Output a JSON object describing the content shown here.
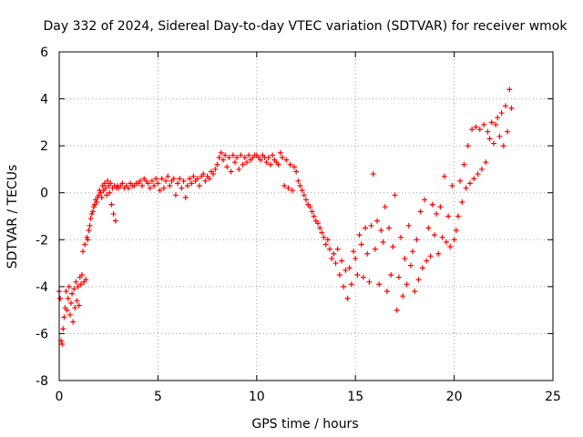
{
  "chart_data": {
    "type": "scatter",
    "title": "Day 332 of 2024, Sidereal Day-to-day VTEC variation (SDTVAR) for receiver wmok",
    "xlabel": "GPS time / hours",
    "ylabel": "SDTVAR / TECUs",
    "xlim": [
      0,
      25
    ],
    "ylim": [
      -8,
      6
    ],
    "xticks": [
      0,
      5,
      10,
      15,
      20,
      25
    ],
    "yticks": [
      -8,
      -6,
      -4,
      -2,
      0,
      2,
      4,
      6
    ],
    "grid": true,
    "marker": "+",
    "color": "#ff0000",
    "series": [
      {
        "name": "wmok",
        "points": [
          [
            0.0,
            -4.2
          ],
          [
            0.05,
            -4.5
          ],
          [
            0.1,
            -6.3
          ],
          [
            0.15,
            -6.45
          ],
          [
            0.2,
            -5.8
          ],
          [
            0.25,
            -5.3
          ],
          [
            0.3,
            -4.9
          ],
          [
            0.35,
            -4.2
          ],
          [
            0.4,
            -5.0
          ],
          [
            0.45,
            -4.5
          ],
          [
            0.5,
            -4.0
          ],
          [
            0.55,
            -5.2
          ],
          [
            0.6,
            -4.7
          ],
          [
            0.65,
            -4.3
          ],
          [
            0.7,
            -5.5
          ],
          [
            0.75,
            -4.1
          ],
          [
            0.8,
            -4.9
          ],
          [
            0.85,
            -3.8
          ],
          [
            0.9,
            -4.6
          ],
          [
            0.95,
            -4.0
          ],
          [
            1.0,
            -4.8
          ],
          [
            1.05,
            -3.6
          ],
          [
            1.1,
            -3.9
          ],
          [
            1.15,
            -3.5
          ],
          [
            1.2,
            -2.5
          ],
          [
            1.25,
            -3.8
          ],
          [
            1.3,
            -2.2
          ],
          [
            1.35,
            -3.7
          ],
          [
            1.4,
            -1.9
          ],
          [
            1.45,
            -2.0
          ],
          [
            1.5,
            -1.6
          ],
          [
            1.55,
            -1.4
          ],
          [
            1.6,
            -1.1
          ],
          [
            1.65,
            -0.9
          ],
          [
            1.7,
            -0.8
          ],
          [
            1.75,
            -0.6
          ],
          [
            1.8,
            -0.5
          ],
          [
            1.85,
            -0.3
          ],
          [
            1.9,
            -0.4
          ],
          [
            1.95,
            -0.2
          ],
          [
            2.0,
            -0.1
          ],
          [
            2.05,
            0.1
          ],
          [
            2.1,
            0.0
          ],
          [
            2.15,
            -0.2
          ],
          [
            2.2,
            0.3
          ],
          [
            2.25,
            0.1
          ],
          [
            2.3,
            0.4
          ],
          [
            2.35,
            0.2
          ],
          [
            2.4,
            -0.1
          ],
          [
            2.45,
            0.5
          ],
          [
            2.5,
            0.3
          ],
          [
            2.55,
            0.0
          ],
          [
            2.6,
            0.4
          ],
          [
            2.65,
            -0.5
          ],
          [
            2.7,
            0.2
          ],
          [
            2.75,
            -0.9
          ],
          [
            2.8,
            0.3
          ],
          [
            2.85,
            -1.2
          ],
          [
            2.9,
            0.2
          ],
          [
            2.95,
            0.3
          ],
          [
            3.0,
            0.2
          ],
          [
            3.1,
            0.3
          ],
          [
            3.2,
            0.4
          ],
          [
            3.3,
            0.2
          ],
          [
            3.4,
            0.3
          ],
          [
            3.5,
            0.2
          ],
          [
            3.6,
            0.4
          ],
          [
            3.7,
            0.3
          ],
          [
            3.8,
            0.3
          ],
          [
            3.9,
            0.4
          ],
          [
            4.0,
            0.4
          ],
          [
            4.1,
            0.5
          ],
          [
            4.2,
            0.3
          ],
          [
            4.3,
            0.6
          ],
          [
            4.4,
            0.5
          ],
          [
            4.5,
            0.4
          ],
          [
            4.6,
            0.2
          ],
          [
            4.7,
            0.5
          ],
          [
            4.8,
            0.3
          ],
          [
            4.9,
            0.6
          ],
          [
            5.0,
            0.4
          ],
          [
            5.1,
            0.1
          ],
          [
            5.2,
            0.6
          ],
          [
            5.3,
            0.2
          ],
          [
            5.4,
            0.5
          ],
          [
            5.5,
            0.7
          ],
          [
            5.6,
            0.3
          ],
          [
            5.7,
            0.5
          ],
          [
            5.8,
            0.6
          ],
          [
            5.9,
            -0.1
          ],
          [
            6.0,
            0.4
          ],
          [
            6.1,
            0.6
          ],
          [
            6.2,
            0.2
          ],
          [
            6.3,
            0.5
          ],
          [
            6.4,
            -0.2
          ],
          [
            6.5,
            0.3
          ],
          [
            6.6,
            0.6
          ],
          [
            6.7,
            0.4
          ],
          [
            6.8,
            0.7
          ],
          [
            6.9,
            0.5
          ],
          [
            7.0,
            0.6
          ],
          [
            7.1,
            0.3
          ],
          [
            7.2,
            0.7
          ],
          [
            7.3,
            0.8
          ],
          [
            7.4,
            0.5
          ],
          [
            7.5,
            0.7
          ],
          [
            7.6,
            0.6
          ],
          [
            7.7,
            0.9
          ],
          [
            7.8,
            0.8
          ],
          [
            7.9,
            1.0
          ],
          [
            8.0,
            1.2
          ],
          [
            8.1,
            1.5
          ],
          [
            8.2,
            1.7
          ],
          [
            8.3,
            1.4
          ],
          [
            8.4,
            1.6
          ],
          [
            8.5,
            1.1
          ],
          [
            8.6,
            1.5
          ],
          [
            8.7,
            0.9
          ],
          [
            8.8,
            1.6
          ],
          [
            8.9,
            1.3
          ],
          [
            9.0,
            1.5
          ],
          [
            9.1,
            1.0
          ],
          [
            9.2,
            1.6
          ],
          [
            9.3,
            1.2
          ],
          [
            9.4,
            1.5
          ],
          [
            9.5,
            1.3
          ],
          [
            9.6,
            1.6
          ],
          [
            9.7,
            1.4
          ],
          [
            9.8,
            1.5
          ],
          [
            9.9,
            1.6
          ],
          [
            10.0,
            1.6
          ],
          [
            10.1,
            1.5
          ],
          [
            10.2,
            1.4
          ],
          [
            10.3,
            1.6
          ],
          [
            10.4,
            1.5
          ],
          [
            10.5,
            1.3
          ],
          [
            10.6,
            1.5
          ],
          [
            10.7,
            1.2
          ],
          [
            10.8,
            1.6
          ],
          [
            10.9,
            1.4
          ],
          [
            11.0,
            1.3
          ],
          [
            11.1,
            1.2
          ],
          [
            11.2,
            1.7
          ],
          [
            11.3,
            1.5
          ],
          [
            11.4,
            0.3
          ],
          [
            11.5,
            1.4
          ],
          [
            11.6,
            0.2
          ],
          [
            11.7,
            1.2
          ],
          [
            11.8,
            0.1
          ],
          [
            11.9,
            1.1
          ],
          [
            12.0,
            0.9
          ],
          [
            12.1,
            0.5
          ],
          [
            12.2,
            0.3
          ],
          [
            12.3,
            0.1
          ],
          [
            12.4,
            -0.1
          ],
          [
            12.5,
            -0.3
          ],
          [
            12.6,
            -0.5
          ],
          [
            12.7,
            -0.6
          ],
          [
            12.8,
            -0.8
          ],
          [
            12.9,
            -1.0
          ],
          [
            13.0,
            -1.2
          ],
          [
            13.1,
            -1.3
          ],
          [
            13.2,
            -1.5
          ],
          [
            13.3,
            -1.7
          ],
          [
            13.4,
            -1.9
          ],
          [
            13.5,
            -2.2
          ],
          [
            13.6,
            -2.0
          ],
          [
            13.7,
            -2.4
          ],
          [
            13.8,
            -2.8
          ],
          [
            13.9,
            -2.6
          ],
          [
            14.0,
            -3.0
          ],
          [
            14.1,
            -2.4
          ],
          [
            14.2,
            -3.5
          ],
          [
            14.3,
            -2.9
          ],
          [
            14.4,
            -4.0
          ],
          [
            14.5,
            -3.3
          ],
          [
            14.6,
            -4.5
          ],
          [
            14.7,
            -3.2
          ],
          [
            14.8,
            -3.9
          ],
          [
            14.9,
            -2.5
          ],
          [
            15.0,
            -2.8
          ],
          [
            15.1,
            -3.5
          ],
          [
            15.2,
            -1.8
          ],
          [
            15.3,
            -2.2
          ],
          [
            15.4,
            -3.6
          ],
          [
            15.5,
            -1.5
          ],
          [
            15.6,
            -2.6
          ],
          [
            15.7,
            -3.8
          ],
          [
            15.8,
            -1.4
          ],
          [
            15.9,
            0.8
          ],
          [
            16.0,
            -2.4
          ],
          [
            16.1,
            -1.2
          ],
          [
            16.2,
            -3.9
          ],
          [
            16.3,
            -1.6
          ],
          [
            16.4,
            -2.1
          ],
          [
            16.5,
            -0.6
          ],
          [
            16.6,
            -4.2
          ],
          [
            16.7,
            -1.5
          ],
          [
            16.8,
            -3.5
          ],
          [
            16.9,
            -2.3
          ],
          [
            17.0,
            -0.1
          ],
          [
            17.1,
            -5.0
          ],
          [
            17.2,
            -3.6
          ],
          [
            17.3,
            -1.9
          ],
          [
            17.4,
            -4.4
          ],
          [
            17.5,
            -2.8
          ],
          [
            17.6,
            -3.9
          ],
          [
            17.7,
            -1.4
          ],
          [
            17.8,
            -3.1
          ],
          [
            17.9,
            -2.5
          ],
          [
            18.0,
            -4.2
          ],
          [
            18.1,
            -2.0
          ],
          [
            18.2,
            -3.7
          ],
          [
            18.3,
            -0.8
          ],
          [
            18.4,
            -3.2
          ],
          [
            18.5,
            -0.3
          ],
          [
            18.6,
            -2.9
          ],
          [
            18.7,
            -1.5
          ],
          [
            18.8,
            -2.7
          ],
          [
            18.9,
            -0.5
          ],
          [
            19.0,
            -1.8
          ],
          [
            19.1,
            -0.9
          ],
          [
            19.2,
            -2.6
          ],
          [
            19.3,
            -0.6
          ],
          [
            19.4,
            -1.9
          ],
          [
            19.5,
            0.7
          ],
          [
            19.6,
            -2.1
          ],
          [
            19.7,
            -1.0
          ],
          [
            19.8,
            -2.3
          ],
          [
            19.9,
            0.3
          ],
          [
            20.0,
            -2.0
          ],
          [
            20.1,
            -1.6
          ],
          [
            20.2,
            -1.0
          ],
          [
            20.3,
            0.5
          ],
          [
            20.4,
            -0.4
          ],
          [
            20.5,
            1.2
          ],
          [
            20.6,
            0.2
          ],
          [
            20.7,
            2.0
          ],
          [
            20.8,
            0.4
          ],
          [
            20.9,
            2.7
          ],
          [
            21.0,
            0.6
          ],
          [
            21.1,
            2.8
          ],
          [
            21.2,
            0.8
          ],
          [
            21.3,
            2.7
          ],
          [
            21.4,
            1.0
          ],
          [
            21.5,
            2.9
          ],
          [
            21.6,
            1.3
          ],
          [
            21.7,
            2.6
          ],
          [
            21.8,
            2.3
          ],
          [
            21.9,
            3.0
          ],
          [
            22.0,
            2.1
          ],
          [
            22.1,
            2.9
          ],
          [
            22.2,
            3.2
          ],
          [
            22.3,
            2.4
          ],
          [
            22.4,
            3.4
          ],
          [
            22.5,
            2.0
          ],
          [
            22.6,
            3.7
          ],
          [
            22.7,
            2.6
          ],
          [
            22.8,
            4.4
          ],
          [
            22.9,
            3.6
          ]
        ]
      }
    ]
  }
}
